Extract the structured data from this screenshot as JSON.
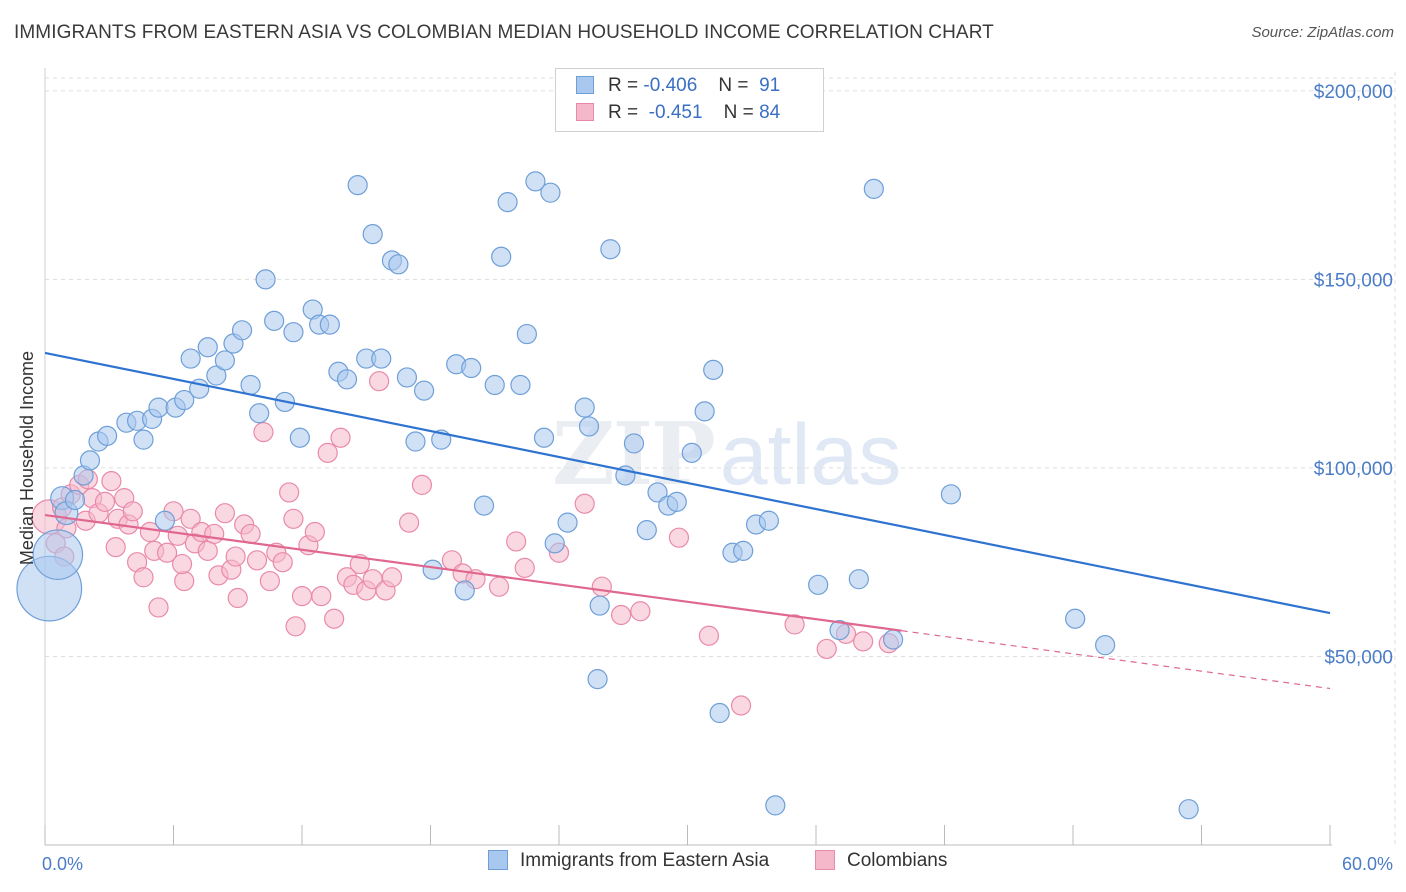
{
  "header": {
    "title": "IMMIGRANTS FROM EASTERN ASIA VS COLOMBIAN MEDIAN HOUSEHOLD INCOME CORRELATION CHART",
    "source": "Source: ZipAtlas.com"
  },
  "watermark": {
    "zip": "ZIP",
    "atlas": "atlas"
  },
  "legend": {
    "rows": [
      {
        "r_label": "R =",
        "r_value": "-0.406",
        "n_label": "N =",
        "n_value": "91"
      },
      {
        "r_label": "R =",
        "r_value": "-0.451",
        "n_label": "N =",
        "n_value": "84"
      }
    ]
  },
  "bottom_legend": {
    "series_a": "Immigrants from Eastern Asia",
    "series_b": "Colombians"
  },
  "colors": {
    "blue_fill": "#a9c8ef",
    "blue_stroke": "#6f9fd8",
    "blue_line": "#2f73d1",
    "pink_fill": "#f5b8cb",
    "pink_stroke": "#e98aaa",
    "pink_line": "#e06890",
    "grid": "#dddddd",
    "axis_text": "#4a7cc7"
  },
  "chart_data": {
    "type": "scatter",
    "title": "IMMIGRANTS FROM EASTERN ASIA VS COLOMBIAN MEDIAN HOUSEHOLD INCOME CORRELATION CHART",
    "xlabel": "",
    "ylabel": "Median Household Income",
    "xlim": [
      0,
      60
    ],
    "ylim": [
      0,
      205000
    ],
    "x_tick_labels": [
      "0.0%",
      "60.0%"
    ],
    "y_ticks": [
      50000,
      100000,
      150000,
      200000
    ],
    "y_tick_labels": [
      "$50,000",
      "$100,000",
      "$150,000",
      "$200,000"
    ],
    "grid": true,
    "legend_position": "top-center",
    "series": [
      {
        "name": "Immigrants from Eastern Asia",
        "r": -0.406,
        "n": 91,
        "trend": {
          "x": [
            0,
            60
          ],
          "y": [
            130500,
            61500
          ]
        },
        "points": [
          [
            0.2,
            68000,
            3.4
          ],
          [
            0.6,
            77000,
            2.6
          ],
          [
            0.8,
            92000,
            1.2
          ],
          [
            1.0,
            88000,
            1.2
          ],
          [
            1.4,
            91500,
            1.0
          ],
          [
            1.8,
            98000,
            1.0
          ],
          [
            2.1,
            102000,
            1.0
          ],
          [
            2.5,
            107000,
            1.0
          ],
          [
            2.9,
            108500,
            1.0
          ],
          [
            3.8,
            112000,
            1.0
          ],
          [
            4.3,
            112500,
            1.0
          ],
          [
            4.6,
            107500,
            1.0
          ],
          [
            5.0,
            113000,
            1.0
          ],
          [
            5.3,
            116000,
            1.0
          ],
          [
            5.6,
            86000,
            1.0
          ],
          [
            6.1,
            116000,
            1.0
          ],
          [
            6.5,
            118000,
            1.0
          ],
          [
            6.8,
            129000,
            1.0
          ],
          [
            7.2,
            121000,
            1.0
          ],
          [
            7.6,
            132000,
            1.0
          ],
          [
            8.0,
            124500,
            1.0
          ],
          [
            8.4,
            128500,
            1.0
          ],
          [
            8.8,
            133000,
            1.0
          ],
          [
            9.2,
            136500,
            1.0
          ],
          [
            9.6,
            122000,
            1.0
          ],
          [
            10.0,
            114500,
            1.0
          ],
          [
            10.3,
            150000,
            1.0
          ],
          [
            10.7,
            139000,
            1.0
          ],
          [
            11.2,
            117500,
            1.0
          ],
          [
            11.6,
            136000,
            1.0
          ],
          [
            11.9,
            108000,
            1.0
          ],
          [
            12.5,
            142000,
            1.0
          ],
          [
            12.8,
            138000,
            1.0
          ],
          [
            13.3,
            138000,
            1.0
          ],
          [
            13.7,
            125500,
            1.0
          ],
          [
            14.1,
            123500,
            1.0
          ],
          [
            14.6,
            175000,
            1.0
          ],
          [
            15.0,
            129000,
            1.0
          ],
          [
            15.3,
            162000,
            1.0
          ],
          [
            15.7,
            129000,
            1.0
          ],
          [
            16.2,
            155000,
            1.0
          ],
          [
            16.5,
            154000,
            1.0
          ],
          [
            16.9,
            124000,
            1.0
          ],
          [
            17.3,
            107000,
            1.0
          ],
          [
            17.7,
            120500,
            1.0
          ],
          [
            18.1,
            73000,
            1.0
          ],
          [
            18.5,
            107500,
            1.0
          ],
          [
            19.2,
            127500,
            1.0
          ],
          [
            19.6,
            67500,
            1.0
          ],
          [
            19.9,
            126500,
            1.0
          ],
          [
            20.5,
            90000,
            1.0
          ],
          [
            21.0,
            122000,
            1.0
          ],
          [
            21.3,
            156000,
            1.0
          ],
          [
            21.6,
            170500,
            1.0
          ],
          [
            22.2,
            122000,
            1.0
          ],
          [
            22.5,
            135500,
            1.0
          ],
          [
            22.9,
            176000,
            1.0
          ],
          [
            23.3,
            108000,
            1.0
          ],
          [
            23.6,
            173000,
            1.0
          ],
          [
            23.8,
            80000,
            1.0
          ],
          [
            24.4,
            85500,
            1.0
          ],
          [
            25.2,
            116000,
            1.0
          ],
          [
            25.4,
            111000,
            1.0
          ],
          [
            25.9,
            63500,
            1.0
          ],
          [
            25.8,
            44000,
            1.0
          ],
          [
            26.4,
            158000,
            1.0
          ],
          [
            27.1,
            98000,
            1.0
          ],
          [
            27.5,
            106500,
            1.0
          ],
          [
            28.1,
            83500,
            1.0
          ],
          [
            28.6,
            93500,
            1.0
          ],
          [
            29.1,
            90000,
            1.0
          ],
          [
            29.5,
            91000,
            1.0
          ],
          [
            30.2,
            104000,
            1.0
          ],
          [
            30.8,
            115000,
            1.0
          ],
          [
            31.2,
            126000,
            1.0
          ],
          [
            31.5,
            35000,
            1.0
          ],
          [
            32.1,
            77500,
            1.0
          ],
          [
            32.6,
            78000,
            1.0
          ],
          [
            33.2,
            85000,
            1.0
          ],
          [
            33.8,
            86000,
            1.0
          ],
          [
            34.1,
            10500,
            1.0
          ],
          [
            36.1,
            69000,
            1.0
          ],
          [
            37.1,
            57000,
            1.0
          ],
          [
            38.0,
            70500,
            1.0
          ],
          [
            38.7,
            174000,
            1.0
          ],
          [
            39.6,
            54500,
            1.0
          ],
          [
            42.3,
            93000,
            1.0
          ],
          [
            48.1,
            60000,
            1.0
          ],
          [
            49.5,
            53000,
            1.0
          ],
          [
            53.4,
            9500,
            1.0
          ]
        ]
      },
      {
        "name": "Colombians",
        "r": -0.451,
        "n": 84,
        "trend": {
          "x": [
            0,
            60
          ],
          "y": [
            87500,
            41500
          ],
          "solid_until_x": 40
        },
        "points": [
          [
            0.2,
            87000,
            1.8
          ],
          [
            0.5,
            80000,
            1.0
          ],
          [
            0.8,
            89500,
            1.0
          ],
          [
            1.0,
            84000,
            1.0
          ],
          [
            1.2,
            93000,
            1.0
          ],
          [
            1.6,
            95500,
            1.0
          ],
          [
            1.9,
            86000,
            1.0
          ],
          [
            2.2,
            92000,
            1.0
          ],
          [
            2.5,
            88000,
            1.0
          ],
          [
            2.8,
            91000,
            1.0
          ],
          [
            3.1,
            96500,
            1.0
          ],
          [
            3.4,
            86500,
            1.0
          ],
          [
            3.7,
            92000,
            1.0
          ],
          [
            3.9,
            85000,
            1.0
          ],
          [
            4.1,
            88500,
            1.0
          ],
          [
            4.3,
            75000,
            1.0
          ],
          [
            4.6,
            71000,
            1.0
          ],
          [
            4.9,
            83000,
            1.0
          ],
          [
            5.1,
            78000,
            1.0
          ],
          [
            5.3,
            63000,
            1.0
          ],
          [
            5.7,
            77500,
            1.0
          ],
          [
            6.0,
            88500,
            1.0
          ],
          [
            6.2,
            82000,
            1.0
          ],
          [
            6.5,
            70000,
            1.0
          ],
          [
            6.8,
            86500,
            1.0
          ],
          [
            7.0,
            80000,
            1.0
          ],
          [
            7.3,
            83000,
            1.0
          ],
          [
            7.6,
            78000,
            1.0
          ],
          [
            7.9,
            82500,
            1.0
          ],
          [
            8.1,
            71500,
            1.0
          ],
          [
            8.4,
            88000,
            1.0
          ],
          [
            8.7,
            73000,
            1.0
          ],
          [
            9.0,
            65500,
            1.0
          ],
          [
            9.3,
            85000,
            1.0
          ],
          [
            9.6,
            82500,
            1.0
          ],
          [
            9.9,
            75500,
            1.0
          ],
          [
            10.2,
            109500,
            1.0
          ],
          [
            10.5,
            70000,
            1.0
          ],
          [
            10.8,
            77500,
            1.0
          ],
          [
            11.1,
            75000,
            1.0
          ],
          [
            11.4,
            93500,
            1.0
          ],
          [
            11.7,
            58000,
            1.0
          ],
          [
            12.0,
            66000,
            1.0
          ],
          [
            12.3,
            79500,
            1.0
          ],
          [
            12.6,
            83000,
            1.0
          ],
          [
            12.9,
            66000,
            1.0
          ],
          [
            13.2,
            104000,
            1.0
          ],
          [
            13.5,
            60000,
            1.0
          ],
          [
            13.8,
            108000,
            1.0
          ],
          [
            14.1,
            71000,
            1.0
          ],
          [
            14.4,
            69000,
            1.0
          ],
          [
            14.7,
            74500,
            1.0
          ],
          [
            15.0,
            67500,
            1.0
          ],
          [
            15.3,
            70500,
            1.0
          ],
          [
            15.6,
            123000,
            1.0
          ],
          [
            15.9,
            67500,
            1.0
          ],
          [
            16.2,
            71000,
            1.0
          ],
          [
            17.0,
            85500,
            1.0
          ],
          [
            17.6,
            95500,
            1.0
          ],
          [
            19.0,
            75500,
            1.0
          ],
          [
            19.5,
            72000,
            1.0
          ],
          [
            20.1,
            70500,
            1.0
          ],
          [
            21.2,
            68500,
            1.0
          ],
          [
            22.0,
            80500,
            1.0
          ],
          [
            22.4,
            73500,
            1.0
          ],
          [
            24.0,
            77500,
            1.0
          ],
          [
            25.2,
            90500,
            1.0
          ],
          [
            26.0,
            68500,
            1.0
          ],
          [
            26.9,
            61000,
            1.0
          ],
          [
            27.8,
            62000,
            1.0
          ],
          [
            29.6,
            81500,
            1.0
          ],
          [
            31.0,
            55500,
            1.0
          ],
          [
            32.5,
            37000,
            1.0
          ],
          [
            35.0,
            58500,
            1.0
          ],
          [
            36.5,
            52000,
            1.0
          ],
          [
            37.4,
            56000,
            1.0
          ],
          [
            38.2,
            54000,
            1.0
          ],
          [
            39.4,
            53500,
            1.0
          ],
          [
            0.9,
            76500,
            1.0
          ],
          [
            2.0,
            97000,
            1.0
          ],
          [
            3.3,
            79000,
            1.0
          ],
          [
            6.4,
            74500,
            1.0
          ],
          [
            8.9,
            76500,
            1.0
          ],
          [
            11.6,
            86500,
            1.0
          ]
        ]
      }
    ]
  }
}
